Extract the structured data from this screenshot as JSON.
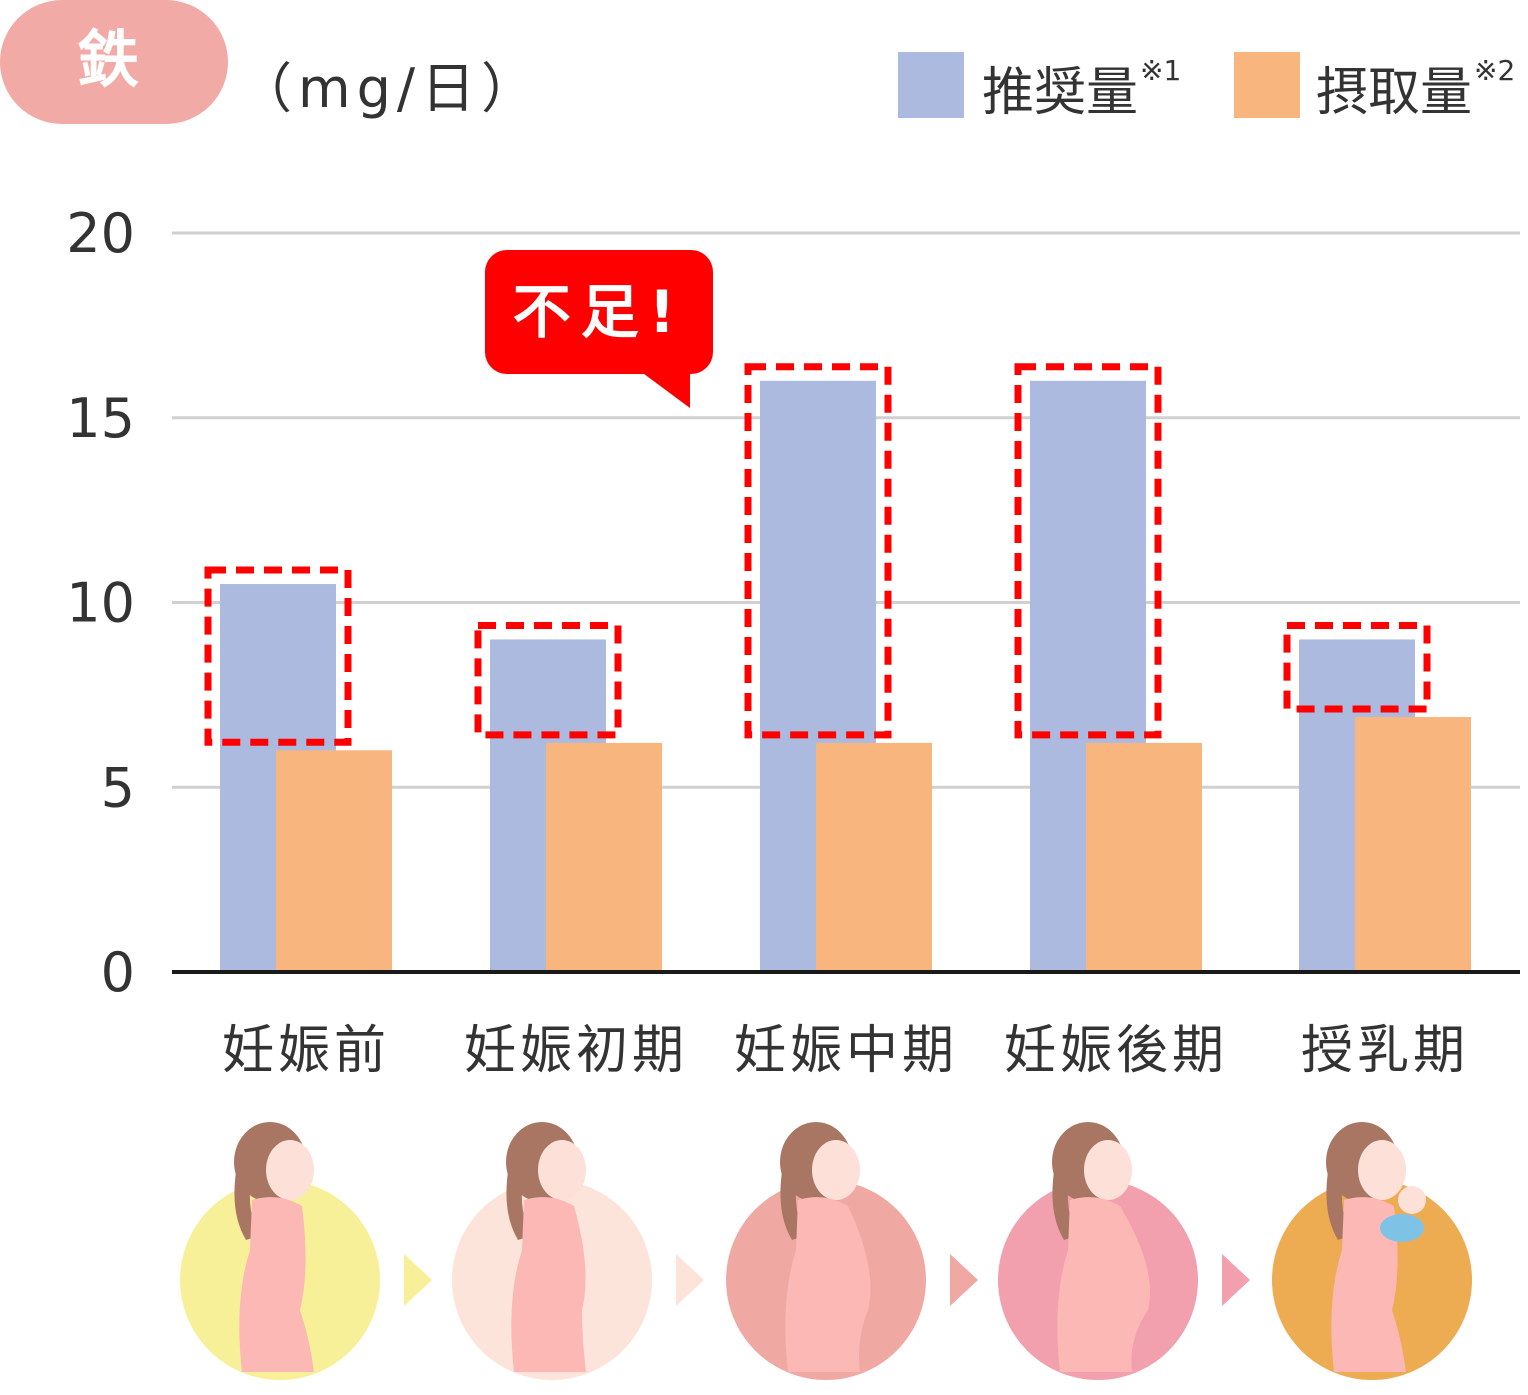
{
  "badge": {
    "label": "鉄"
  },
  "unit": "（mg/日）",
  "legend": [
    {
      "label": "推奨量",
      "note": "※1",
      "color": "#adbadf"
    },
    {
      "label": "摂取量",
      "note": "※2",
      "color": "#f8b57e"
    }
  ],
  "callout": "不足!",
  "colors": {
    "grid": "#d0d0d0",
    "axis": "#1a1a1a",
    "highlight": "#ff0000"
  },
  "chart_data": {
    "type": "bar",
    "categories": [
      "妊娠前",
      "妊娠初期",
      "妊娠中期",
      "妊娠後期",
      "授乳期"
    ],
    "series": [
      {
        "name": "推奨量",
        "values": [
          10.5,
          9.0,
          16.0,
          16.0,
          9.0
        ]
      },
      {
        "name": "摂取量",
        "values": [
          6.0,
          6.2,
          6.2,
          6.2,
          6.9
        ]
      }
    ],
    "ylim": [
      0,
      20
    ],
    "yticks": [
      "0",
      "5",
      "10",
      "15",
      "20"
    ],
    "grid": true,
    "highlight": "shortfall between 推奨量 and 摂取量 marked with dashed red boxes",
    "xlabel": "",
    "ylabel": ""
  },
  "illustrations": [
    {
      "name": "pre-pregnancy-woman-icon",
      "bg": "#f8f099",
      "arrow": "#f8f099"
    },
    {
      "name": "early-pregnancy-woman-icon",
      "bg": "#fde4da",
      "arrow": "#fde4da"
    },
    {
      "name": "mid-pregnancy-woman-icon",
      "bg": "#f0a8a3",
      "arrow": "#f0a8a3"
    },
    {
      "name": "late-pregnancy-woman-icon",
      "bg": "#f2a0ad",
      "arrow": "#f2a0ad"
    },
    {
      "name": "breastfeeding-woman-icon",
      "bg": "#edac52"
    }
  ]
}
